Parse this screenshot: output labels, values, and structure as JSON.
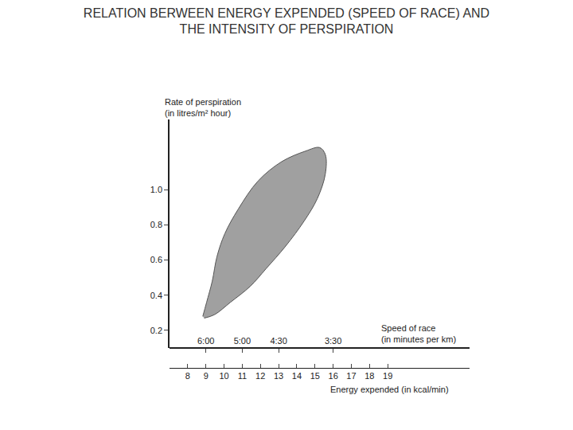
{
  "chart_data": {
    "type": "area",
    "title": "RELATION BERWEEN ENERGY EXPENDED (SPEED OF RACE) AND\nTHE INTENSITY OF PERSPIRATION",
    "ylabel": "Rate of perspiration\n(in litres/m² hour)",
    "xlabel": "Energy expended (in kcal/min)",
    "x2label": "Speed of race\n(in minutes per km)",
    "x": [
      8.83,
      9.04,
      9.35,
      9.61,
      10.04,
      10.78,
      11.87,
      13.17,
      14.48,
      15.26,
      15.57,
      15.57,
      15.13,
      14.39,
      13.39,
      12.3,
      11.43,
      10.35,
      9.48,
      8.91
    ],
    "values": [
      0.28,
      0.36,
      0.48,
      0.62,
      0.75,
      0.89,
      1.05,
      1.16,
      1.22,
      1.24,
      1.2,
      1.09,
      0.95,
      0.82,
      0.68,
      0.55,
      0.45,
      0.36,
      0.29,
      0.27
    ],
    "color": "#a0a0a0",
    "xlim": [
      7,
      23.5
    ],
    "xticks": [
      8,
      9,
      10,
      11,
      12,
      13,
      14,
      15,
      16,
      17,
      18,
      19
    ],
    "x2lim": [
      7,
      23.5
    ],
    "x2ticks": [
      {
        "value": 9,
        "label": "6:00"
      },
      {
        "value": 11,
        "label": "5:00"
      },
      {
        "value": 13,
        "label": "4:30"
      },
      {
        "value": 16,
        "label": "3:30"
      }
    ],
    "ylim": [
      0.1,
      1.4
    ],
    "yticks": [
      0.2,
      0.4,
      0.6,
      0.8,
      {
        "value": 1.0,
        "label": "1.0"
      }
    ],
    "grid": false
  }
}
